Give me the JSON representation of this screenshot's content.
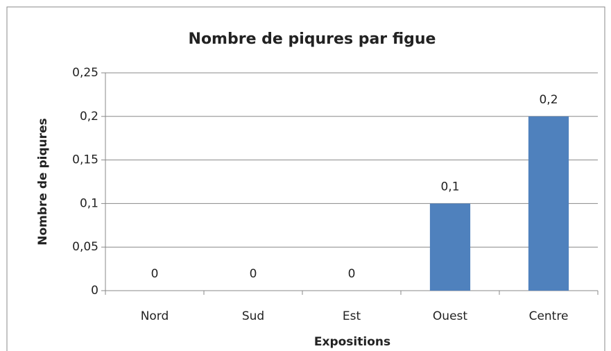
{
  "chart_data": {
    "type": "bar",
    "title": "Nombre de piqures par figue",
    "x_label": "Expositions",
    "y_label": "Nombre de piqures",
    "categories": [
      "Nord",
      "Sud",
      "Est",
      "Ouest",
      "Centre"
    ],
    "values": [
      0,
      0,
      0,
      0.1,
      0.2
    ],
    "value_labels": [
      "0",
      "0",
      "0",
      "0,1",
      "0,2"
    ],
    "color": "#4f81bd",
    "ylim": [
      0,
      0.25
    ],
    "yticks": [
      0,
      {
        "value": 0.05,
        "label": "0,05"
      },
      {
        "value": 0.1,
        "label": "0,1"
      },
      {
        "value": 0.15,
        "label": "0,15"
      },
      {
        "value": 0.2,
        "label": "0,2"
      },
      {
        "value": 0.25,
        "label": "0,25"
      }
    ],
    "grid": true
  }
}
